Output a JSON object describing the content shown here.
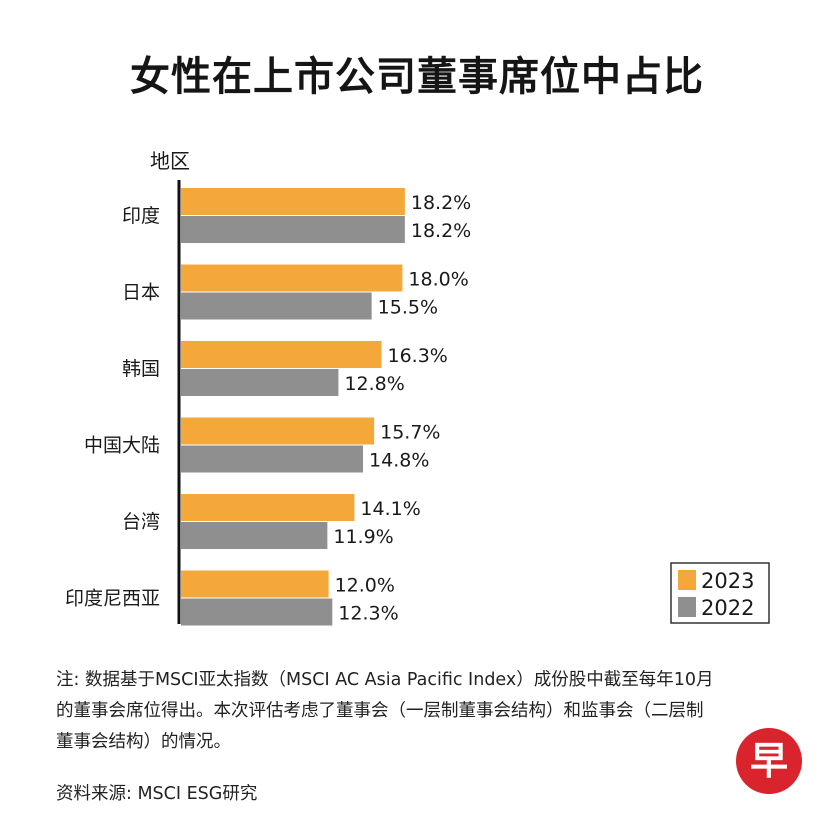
{
  "title": "女性在上市公司董事席位中占比",
  "note": "注: 数据基于MSCI亚太指数（MSCI AC Asia Pacific Index）成份股中截至每年10月的董事会席位得出。本次评估考虑了董事会（一层制董事会结构）和监事会（二层制董事会结构）的情况。",
  "source": "资料来源: MSCI ESG研究",
  "logo_text": "早",
  "colors": {
    "2023": "#f5a83a",
    "2022": "#8f8f8f",
    "axis": "#111111"
  },
  "chart_data": {
    "type": "bar",
    "orientation": "horizontal",
    "ylabel": "地区",
    "categories": [
      "印度",
      "日本",
      "韩国",
      "中国大陆",
      "台湾",
      "印度尼西亚"
    ],
    "series": [
      {
        "name": "2023",
        "values": [
          18.2,
          18.0,
          16.3,
          15.7,
          14.1,
          12.0
        ],
        "labels": [
          "18.2%",
          "18.0%",
          "16.3%",
          "15.7%",
          "14.1%",
          "12.0%"
        ]
      },
      {
        "name": "2022",
        "values": [
          18.2,
          15.5,
          12.8,
          14.8,
          11.9,
          12.3
        ],
        "labels": [
          "18.2%",
          "15.5%",
          "12.8%",
          "14.8%",
          "11.9%",
          "12.3%"
        ]
      }
    ],
    "unit": "%",
    "legend_position": "bottom-right",
    "grid": false
  }
}
